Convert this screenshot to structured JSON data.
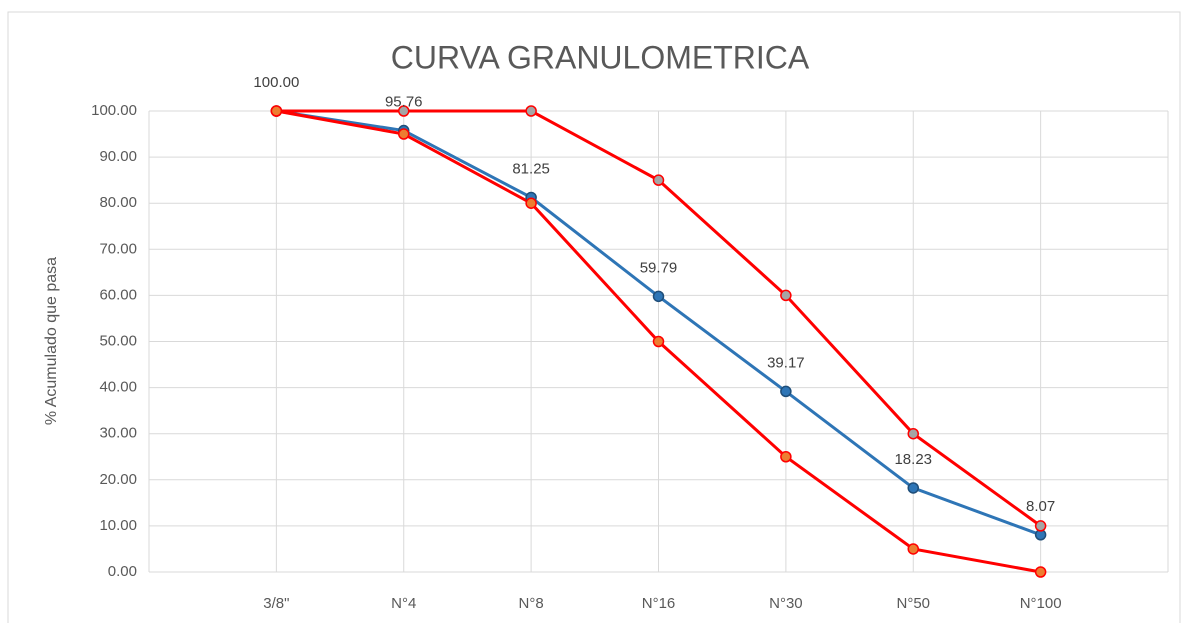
{
  "chart_data": {
    "type": "line",
    "title": "CURVA GRANULOMETRICA",
    "y_label": "% Acumulado que pasa",
    "categories": [
      null,
      "3/8\"",
      "N°4",
      "N°8",
      "N°16",
      "N°30",
      "N°50",
      "N°100",
      null
    ],
    "series": [
      {
        "color": "#2e75b6",
        "marker": "#2e75b6",
        "values": [
          null,
          100,
          95.76,
          81.25,
          59.79,
          39.17,
          18.23,
          8.07,
          null
        ],
        "value_labels": [
          null,
          "100.00",
          "95.76",
          "81.25",
          "59.79",
          "39.17",
          "18.23",
          "8.07",
          null
        ]
      },
      {
        "color": "#ff0000",
        "marker": "#a5a5a5",
        "values": [
          null,
          100,
          100,
          100,
          85,
          60,
          30,
          10,
          null
        ]
      },
      {
        "color": "#ff0000",
        "marker": "#ed7d31",
        "values": [
          null,
          100,
          95,
          80,
          50,
          25,
          5,
          0,
          null
        ]
      }
    ],
    "ylim": [
      0,
      100
    ],
    "yticks": [
      {
        "value": 0,
        "label": "0.00"
      },
      {
        "value": 10,
        "label": "10.00"
      },
      {
        "value": 20,
        "label": "20.00"
      },
      {
        "value": 30,
        "label": "30.00"
      },
      {
        "value": 40,
        "label": "40.00"
      },
      {
        "value": 50,
        "label": "50.00"
      },
      {
        "value": 60,
        "label": "60.00"
      },
      {
        "value": 70,
        "label": "70.00"
      },
      {
        "value": 80,
        "label": "80.00"
      },
      {
        "value": 90,
        "label": "90.00"
      },
      {
        "value": 100,
        "label": "100.00"
      }
    ],
    "grid": true
  }
}
